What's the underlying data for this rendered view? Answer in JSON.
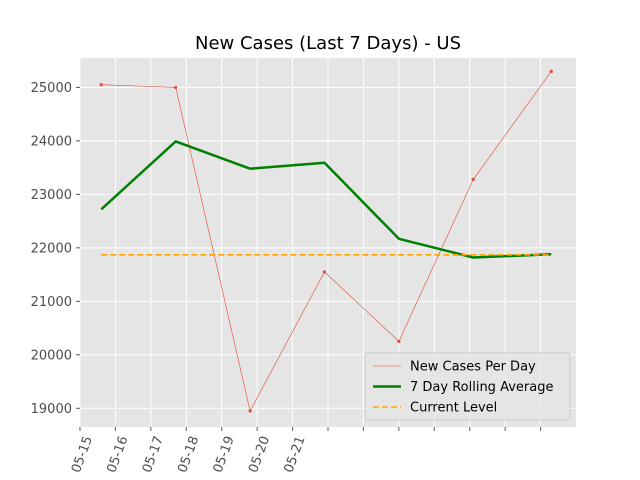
{
  "chart_data": {
    "type": "line",
    "title": "New Cases (Last 7 Days) - US",
    "xlabel": "",
    "ylabel": "",
    "x_tick_labels": [
      "05-15",
      "05-16",
      "05-17",
      "05-18",
      "05-19",
      "05-20",
      "05-21"
    ],
    "x_day_range": [
      15,
      29
    ],
    "x_tick_days": [
      15,
      16,
      17,
      18,
      19,
      20,
      21,
      22,
      23,
      24,
      25,
      26,
      27,
      28
    ],
    "ylim": [
      18650,
      25550
    ],
    "y_ticks": [
      19000,
      20000,
      21000,
      22000,
      23000,
      24000,
      25000
    ],
    "grid": true,
    "legend_position": "lower-right",
    "background": "#e5e5e5",
    "series": [
      {
        "name": "New Cases Per Day",
        "style": "thin-line-with-dots",
        "color": "#e24a33",
        "x": [
          15.6,
          17.7,
          19.8,
          21.9,
          24.0,
          26.1,
          28.3
        ],
        "values": [
          25050,
          25000,
          18950,
          21550,
          20250,
          23280,
          25300
        ]
      },
      {
        "name": "7 Day Rolling Average",
        "style": "thick-line",
        "color": "#008000",
        "x": [
          15.6,
          17.7,
          19.8,
          21.9,
          24.0,
          26.1,
          28.3
        ],
        "values": [
          22720,
          23990,
          23480,
          23590,
          22170,
          21820,
          21880
        ]
      },
      {
        "name": "Current Level",
        "style": "dashed-line",
        "color": "#ffa500",
        "x": [
          15.6,
          28.3
        ],
        "values": [
          21870,
          21870
        ]
      }
    ]
  }
}
